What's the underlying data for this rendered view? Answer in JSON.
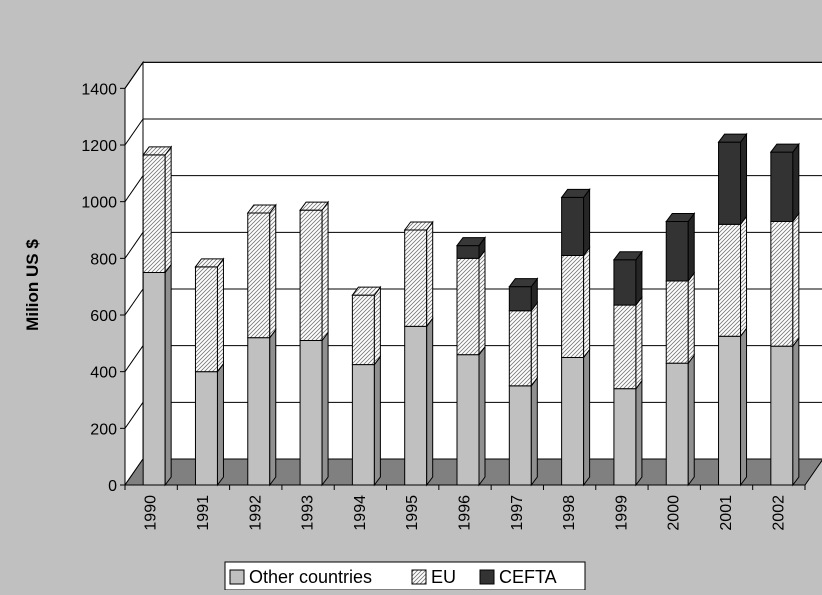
{
  "chart_data": {
    "type": "bar",
    "stacked": true,
    "three_d": true,
    "ylabel": "Milion US $",
    "xlabel": "",
    "ylim": [
      0,
      1400
    ],
    "yticks": [
      0,
      200,
      400,
      600,
      800,
      1000,
      1200,
      1400
    ],
    "grid": "horizontal",
    "legend_position": "bottom",
    "categories": [
      "1990",
      "1991",
      "1992",
      "1993",
      "1994",
      "1995",
      "1996",
      "1997",
      "1998",
      "1999",
      "2000",
      "2001",
      "2002"
    ],
    "series": [
      {
        "name": "Other countries",
        "values": [
          750,
          400,
          520,
          510,
          425,
          560,
          460,
          350,
          450,
          340,
          430,
          525,
          490
        ]
      },
      {
        "name": "EU",
        "values": [
          415,
          370,
          440,
          460,
          245,
          340,
          340,
          265,
          360,
          295,
          290,
          395,
          440
        ]
      },
      {
        "name": "CEFTA",
        "values": [
          0,
          0,
          0,
          0,
          0,
          0,
          45,
          85,
          205,
          160,
          210,
          290,
          245
        ]
      }
    ],
    "colors": {
      "background": "#c0c0c0",
      "plot_area": "#ffffff",
      "floor": "#808080",
      "other_countries": "#c0c0c0",
      "eu": "#ffffff",
      "cefta": "#333333"
    }
  }
}
